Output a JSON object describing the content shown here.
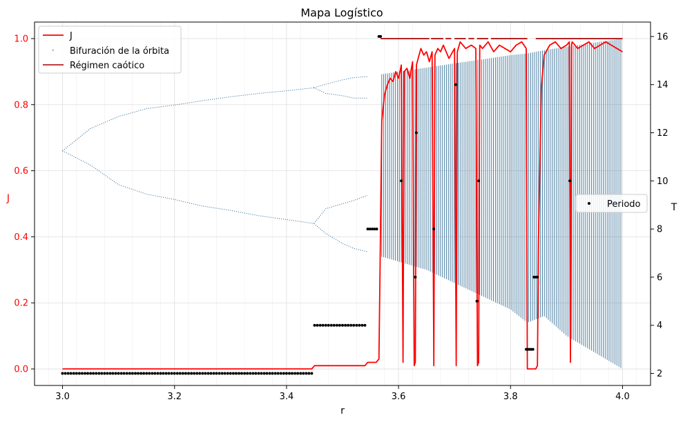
{
  "chart_data": {
    "type": "line",
    "title": "Mapa Logístico",
    "xlabel": "r",
    "ylabel_left": "J",
    "ylabel_right": "T",
    "xlim": [
      2.95,
      4.05
    ],
    "ylim_left": [
      -0.05,
      1.05
    ],
    "ylim_right": [
      1.5,
      16.6
    ],
    "xticks": [
      3.0,
      3.2,
      3.4,
      3.6,
      3.8,
      4.0
    ],
    "xtick_labels": [
      "3.0",
      "3.2",
      "3.4",
      "3.6",
      "3.8",
      "4.0"
    ],
    "yticks_left": [
      0.0,
      0.2,
      0.4,
      0.6,
      0.8,
      1.0
    ],
    "ytick_labels_left": [
      "0.0",
      "0.2",
      "0.4",
      "0.6",
      "0.8",
      "1.0"
    ],
    "yticks_right": [
      2,
      4,
      6,
      8,
      10,
      12,
      14,
      16
    ],
    "ytick_labels_right": [
      "2",
      "4",
      "6",
      "8",
      "10",
      "12",
      "14",
      "16"
    ],
    "grid": true,
    "legend_left": {
      "placement": "upper-left",
      "entries": [
        "J",
        "Bifuración de la órbita",
        "Régimen caótico"
      ]
    },
    "legend_right": {
      "placement": "center-right",
      "entries": [
        "Periodo"
      ]
    },
    "colors": {
      "J": "#ff0000",
      "orbit": "#1f5f8b",
      "chaos": "#b22222",
      "period": "#000000",
      "left_axis_ticks": "#ff0000"
    },
    "series": [
      {
        "name": "J",
        "axis": "left",
        "x": [
          3.0,
          3.1,
          3.2,
          3.3,
          3.4,
          3.445,
          3.45,
          3.5,
          3.54,
          3.545,
          3.56,
          3.565,
          3.567,
          3.57,
          3.575,
          3.58,
          3.585,
          3.59,
          3.595,
          3.6,
          3.605,
          3.608,
          3.61,
          3.615,
          3.62,
          3.625,
          3.628,
          3.63,
          3.632,
          3.635,
          3.64,
          3.645,
          3.65,
          3.655,
          3.66,
          3.663,
          3.665,
          3.67,
          3.675,
          3.68,
          3.69,
          3.7,
          3.703,
          3.705,
          3.71,
          3.72,
          3.73,
          3.738,
          3.741,
          3.743,
          3.745,
          3.75,
          3.76,
          3.77,
          3.78,
          3.79,
          3.8,
          3.81,
          3.82,
          3.828,
          3.83,
          3.84,
          3.845,
          3.848,
          3.85,
          3.855,
          3.86,
          3.87,
          3.88,
          3.89,
          3.9,
          3.905,
          3.907,
          3.909,
          3.91,
          3.92,
          3.93,
          3.94,
          3.95,
          3.96,
          3.97,
          3.98,
          3.99,
          4.0
        ],
        "values": [
          0.0,
          0.0,
          0.0,
          0.0,
          0.0,
          0.0,
          0.01,
          0.01,
          0.01,
          0.02,
          0.02,
          0.03,
          0.3,
          0.75,
          0.83,
          0.86,
          0.88,
          0.87,
          0.9,
          0.88,
          0.92,
          0.02,
          0.9,
          0.91,
          0.88,
          0.93,
          0.01,
          0.02,
          0.92,
          0.94,
          0.97,
          0.95,
          0.96,
          0.93,
          0.96,
          0.01,
          0.95,
          0.97,
          0.96,
          0.98,
          0.94,
          0.97,
          0.01,
          0.96,
          0.99,
          0.97,
          0.98,
          0.97,
          0.01,
          0.02,
          0.98,
          0.97,
          0.99,
          0.96,
          0.98,
          0.97,
          0.96,
          0.98,
          0.99,
          0.97,
          0.0,
          0.0,
          0.0,
          0.01,
          0.4,
          0.85,
          0.95,
          0.98,
          0.99,
          0.97,
          0.98,
          0.99,
          0.02,
          0.98,
          0.99,
          0.97,
          0.98,
          0.99,
          0.97,
          0.98,
          0.99,
          0.98,
          0.97,
          0.96
        ]
      },
      {
        "name": "Bifuración de la órbita",
        "axis": "left",
        "branches": [
          {
            "r": [
              3.0,
              3.05,
              3.1,
              3.15,
              3.2,
              3.25,
              3.3,
              3.35,
              3.4,
              3.449
            ],
            "x": [
              0.66,
              0.728,
              0.764,
              0.788,
              0.799,
              0.812,
              0.824,
              0.834,
              0.842,
              0.851
            ]
          },
          {
            "r": [
              3.0,
              3.05,
              3.1,
              3.15,
              3.2,
              3.25,
              3.3,
              3.35,
              3.4,
              3.449
            ],
            "x": [
              0.66,
              0.617,
              0.558,
              0.529,
              0.513,
              0.493,
              0.48,
              0.464,
              0.452,
              0.44
            ]
          },
          {
            "r": [
              3.449,
              3.47,
              3.5,
              3.52,
              3.544
            ],
            "x": [
              0.851,
              0.862,
              0.875,
              0.882,
              0.885
            ]
          },
          {
            "r": [
              3.449,
              3.47,
              3.5,
              3.52,
              3.544
            ],
            "x": [
              0.851,
              0.834,
              0.827,
              0.82,
              0.82
            ]
          },
          {
            "r": [
              3.449,
              3.47,
              3.5,
              3.52,
              3.544
            ],
            "x": [
              0.44,
              0.485,
              0.5,
              0.51,
              0.525
            ]
          },
          {
            "r": [
              3.449,
              3.47,
              3.5,
              3.52,
              3.544
            ],
            "x": [
              0.44,
              0.41,
              0.38,
              0.365,
              0.355
            ]
          }
        ],
        "chaotic_band": {
          "r": [
            3.57,
            3.6,
            3.65,
            3.7,
            3.75,
            3.8,
            3.83,
            3.86,
            3.9,
            3.95,
            4.0
          ],
          "upper": [
            0.892,
            0.9,
            0.912,
            0.925,
            0.937,
            0.95,
            0.955,
            0.965,
            0.975,
            0.988,
            1.0
          ],
          "lower": [
            0.34,
            0.325,
            0.3,
            0.26,
            0.22,
            0.18,
            0.14,
            0.16,
            0.1,
            0.05,
            0.0
          ]
        }
      },
      {
        "name": "Régimen caótico",
        "axis": "left",
        "y": 1.0,
        "segments": [
          [
            3.568,
            3.655
          ],
          [
            3.658,
            3.68
          ],
          [
            3.684,
            3.694
          ],
          [
            3.7,
            3.72
          ],
          [
            3.725,
            3.735
          ],
          [
            3.74,
            3.76
          ],
          [
            3.765,
            3.83
          ],
          [
            3.845,
            4.0
          ]
        ]
      },
      {
        "name": "Periodo",
        "axis": "right",
        "points": [
          {
            "x_from": 3.0,
            "x_to": 3.448,
            "step": 0.005,
            "y": 2
          },
          {
            "x_from": 3.45,
            "x_to": 3.543,
            "step": 0.005,
            "y": 4
          },
          {
            "x_from": 3.545,
            "x_to": 3.562,
            "step": 0.004,
            "y": 8
          },
          {
            "x_from": 3.565,
            "x_to": 3.57,
            "step": 0.003,
            "y": 16
          },
          {
            "x": 3.605,
            "y": 10
          },
          {
            "x": 3.63,
            "y": 6
          },
          {
            "x": 3.632,
            "y": 12
          },
          {
            "x": 3.663,
            "y": 8
          },
          {
            "x": 3.702,
            "y": 14
          },
          {
            "x": 3.74,
            "y": 5
          },
          {
            "x": 3.743,
            "y": 10
          },
          {
            "x_from": 3.828,
            "x_to": 3.84,
            "step": 0.003,
            "y": 3
          },
          {
            "x_from": 3.842,
            "x_to": 3.848,
            "step": 0.003,
            "y": 6
          },
          {
            "x": 3.906,
            "y": 10
          }
        ]
      }
    ]
  }
}
